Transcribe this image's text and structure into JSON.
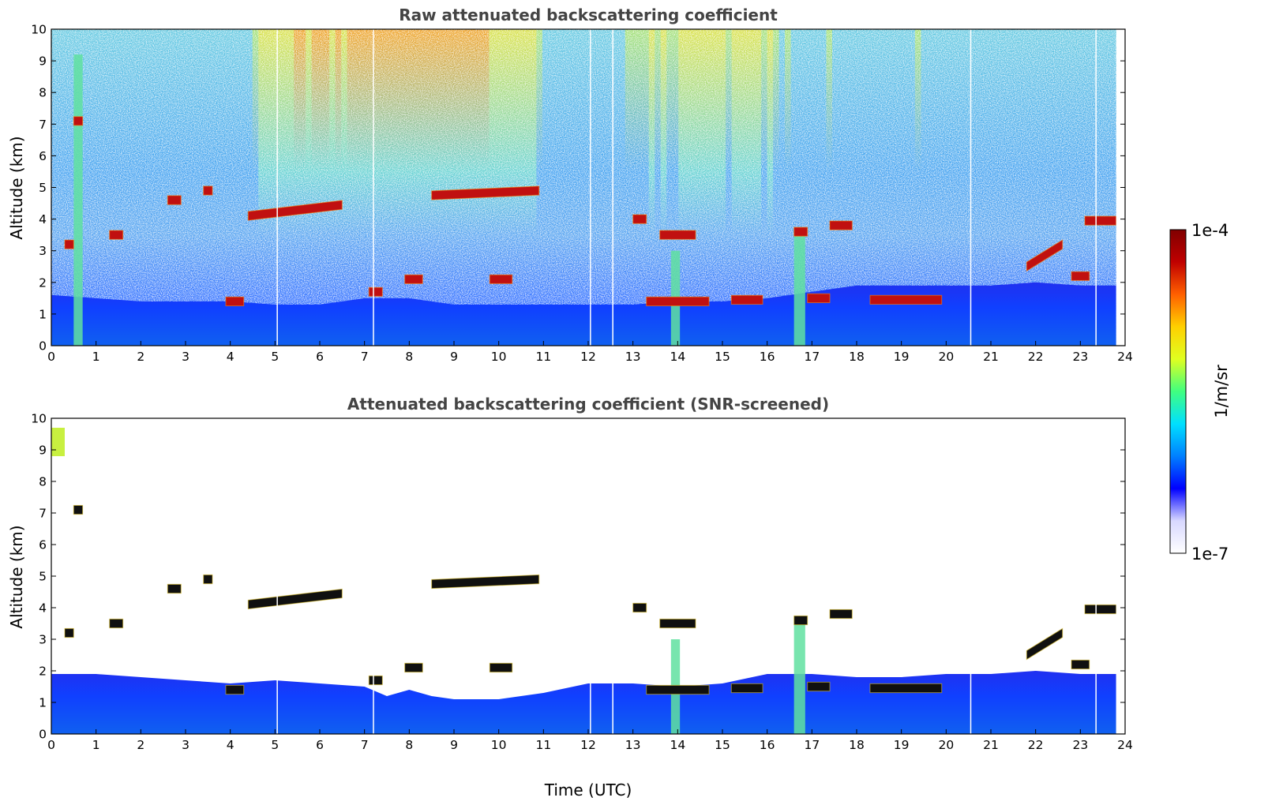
{
  "figure": {
    "colorbar": {
      "max_label": "1e-4",
      "min_label": "1e-7",
      "unit_label": "1/m/sr",
      "scale": "log",
      "colormap": [
        "#ffffff",
        "#d8d8ff",
        "#0000ff",
        "#0080ff",
        "#00e0ff",
        "#40ff80",
        "#e0ff20",
        "#ffd000",
        "#ff6000",
        "#c00000",
        "#800000"
      ]
    }
  },
  "chart_data": [
    {
      "type": "heatmap",
      "title": "Raw attenuated backscattering coefficient",
      "xlabel": "",
      "ylabel": "Altitude (km)",
      "xlim": [
        0,
        24
      ],
      "ylim": [
        0,
        10
      ],
      "x_ticks": [
        "0",
        "1",
        "2",
        "3",
        "4",
        "5",
        "6",
        "7",
        "8",
        "9",
        "10",
        "11",
        "12",
        "13",
        "14",
        "15",
        "16",
        "17",
        "18",
        "19",
        "20",
        "21",
        "22",
        "23",
        "24"
      ],
      "y_ticks": [
        "0",
        "1",
        "2",
        "3",
        "4",
        "5",
        "6",
        "7",
        "8",
        "9",
        "10"
      ],
      "boundary_layer_top_km": [
        [
          0,
          1.6
        ],
        [
          1,
          1.5
        ],
        [
          2,
          1.4
        ],
        [
          3,
          1.4
        ],
        [
          4,
          1.4
        ],
        [
          5,
          1.3
        ],
        [
          6,
          1.3
        ],
        [
          7,
          1.5
        ],
        [
          8,
          1.5
        ],
        [
          9,
          1.3
        ],
        [
          10,
          1.3
        ],
        [
          11,
          1.3
        ],
        [
          12,
          1.3
        ],
        [
          13,
          1.3
        ],
        [
          14,
          1.4
        ],
        [
          15,
          1.4
        ],
        [
          16,
          1.5
        ],
        [
          17,
          1.7
        ],
        [
          18,
          1.9
        ],
        [
          19,
          1.9
        ],
        [
          20,
          1.9
        ],
        [
          21,
          1.9
        ],
        [
          22,
          2.0
        ],
        [
          23,
          1.9
        ],
        [
          23.8,
          1.9
        ]
      ],
      "cloud_layers": [
        {
          "t0": 0.5,
          "t1": 0.7,
          "alt": 7.1
        },
        {
          "t0": 0.3,
          "t1": 0.5,
          "alt": 3.2
        },
        {
          "t0": 1.3,
          "t1": 1.6,
          "alt": 3.5
        },
        {
          "t0": 2.6,
          "t1": 2.9,
          "alt": 4.6
        },
        {
          "t0": 3.4,
          "t1": 3.6,
          "alt": 4.9
        },
        {
          "t0": 3.9,
          "t1": 4.3,
          "alt": 1.4
        },
        {
          "t0": 4.4,
          "t1": 6.5,
          "alt0": 4.1,
          "alt1": 4.45
        },
        {
          "t0": 7.1,
          "t1": 7.4,
          "alt": 1.7
        },
        {
          "t0": 7.9,
          "t1": 8.3,
          "alt": 2.1
        },
        {
          "t0": 8.5,
          "t1": 10.9,
          "alt0": 4.75,
          "alt1": 4.9
        },
        {
          "t0": 9.8,
          "t1": 10.3,
          "alt": 2.1
        },
        {
          "t0": 13.0,
          "t1": 13.3,
          "alt": 4.0
        },
        {
          "t0": 13.6,
          "t1": 14.4,
          "alt": 3.5
        },
        {
          "t0": 13.3,
          "t1": 14.7,
          "alt": 1.4
        },
        {
          "t0": 15.2,
          "t1": 15.9,
          "alt": 1.45
        },
        {
          "t0": 16.6,
          "t1": 16.9,
          "alt": 3.6
        },
        {
          "t0": 17.4,
          "t1": 17.9,
          "alt": 3.8
        },
        {
          "t0": 16.9,
          "t1": 17.4,
          "alt": 1.5
        },
        {
          "t0": 18.3,
          "t1": 19.9,
          "alt": 1.45
        },
        {
          "t0": 21.8,
          "t1": 22.6,
          "alt0": 2.5,
          "alt1": 3.2
        },
        {
          "t0": 22.8,
          "t1": 23.2,
          "alt": 2.2
        },
        {
          "t0": 23.1,
          "t1": 23.8,
          "alt": 3.95
        }
      ],
      "aerosol_plumes": [
        {
          "t0": 16.6,
          "t1": 16.85,
          "alt_top": 3.7
        },
        {
          "t0": 13.85,
          "t1": 14.05,
          "alt_top": 3.0
        },
        {
          "t0": 0.5,
          "t1": 0.7,
          "alt_top": 9.2
        }
      ]
    },
    {
      "type": "heatmap",
      "title": "Attenuated backscattering coefficient (SNR-screened)",
      "xlabel": "Time (UTC)",
      "ylabel": "Altitude (km)",
      "xlim": [
        0,
        24
      ],
      "ylim": [
        0,
        10
      ],
      "x_ticks": [
        "0",
        "1",
        "2",
        "3",
        "4",
        "5",
        "6",
        "7",
        "8",
        "9",
        "10",
        "11",
        "12",
        "13",
        "14",
        "15",
        "16",
        "17",
        "18",
        "19",
        "20",
        "21",
        "22",
        "23",
        "24"
      ],
      "y_ticks": [
        "0",
        "1",
        "2",
        "3",
        "4",
        "5",
        "6",
        "7",
        "8",
        "9",
        "10"
      ],
      "screened_layer_top_km": [
        [
          0,
          1.9
        ],
        [
          1,
          1.9
        ],
        [
          2,
          1.8
        ],
        [
          3,
          1.7
        ],
        [
          4,
          1.6
        ],
        [
          5,
          1.7
        ],
        [
          6,
          1.6
        ],
        [
          7,
          1.5
        ],
        [
          7.5,
          1.2
        ],
        [
          8,
          1.4
        ],
        [
          8.5,
          1.2
        ],
        [
          9,
          1.1
        ],
        [
          10,
          1.1
        ],
        [
          11,
          1.3
        ],
        [
          12,
          1.6
        ],
        [
          13,
          1.6
        ],
        [
          14,
          1.5
        ],
        [
          15,
          1.6
        ],
        [
          16,
          1.9
        ],
        [
          17,
          1.9
        ],
        [
          18,
          1.8
        ],
        [
          19,
          1.8
        ],
        [
          20,
          1.9
        ],
        [
          21,
          1.9
        ],
        [
          22,
          2.0
        ],
        [
          23,
          1.9
        ],
        [
          23.8,
          1.9
        ]
      ]
    }
  ]
}
